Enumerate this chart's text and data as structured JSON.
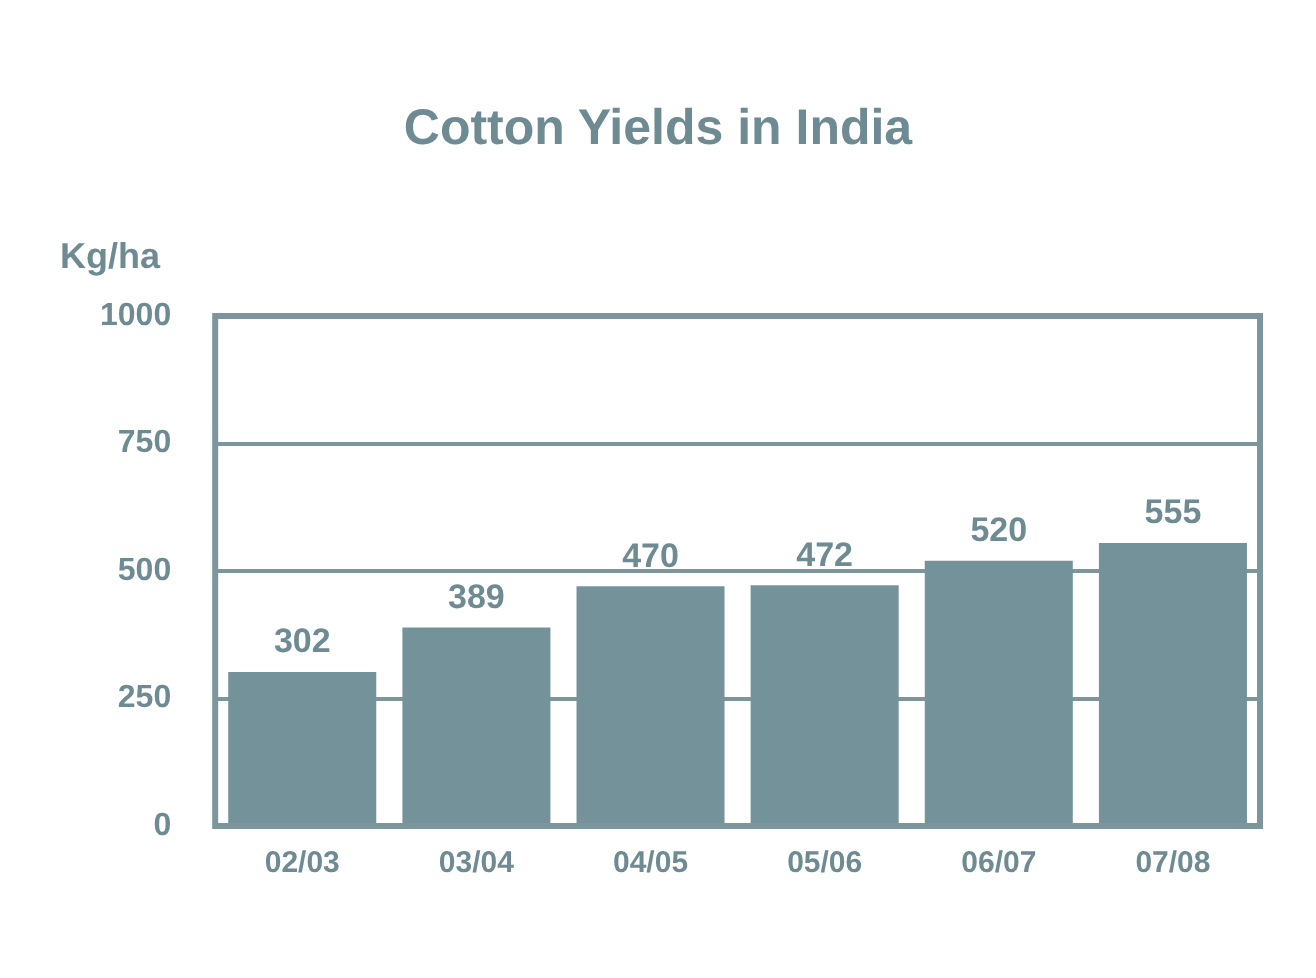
{
  "chart_data": {
    "type": "bar",
    "title": "Cotton Yields in India",
    "ylabel": "Kg/ha",
    "categories": [
      "02/03",
      "03/04",
      "04/05",
      "05/06",
      "06/07",
      "07/08"
    ],
    "values": [
      302,
      389,
      470,
      472,
      520,
      555
    ],
    "color": "#73929a",
    "ylim": [
      0,
      1000
    ],
    "yticks": [
      0,
      250,
      500,
      750,
      1000
    ],
    "grid": "y",
    "data_labels": true,
    "legend": false
  }
}
